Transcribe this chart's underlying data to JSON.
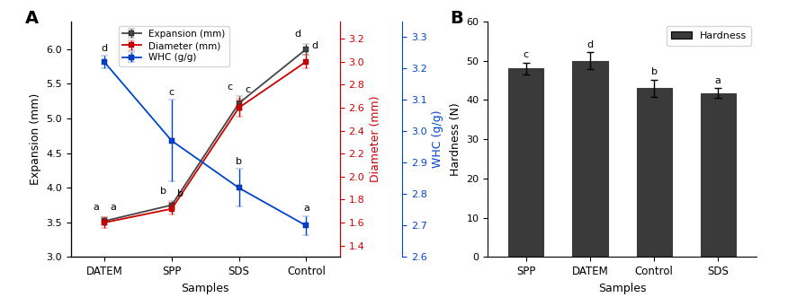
{
  "panel_A": {
    "samples": [
      "DATEM",
      "SPP",
      "SDS",
      "Control"
    ],
    "expansion_mean": [
      3.52,
      3.75,
      5.22,
      6.0
    ],
    "expansion_err": [
      0.06,
      0.06,
      0.1,
      0.08
    ],
    "expansion_labels": [
      "a",
      "b",
      "c",
      "d"
    ],
    "diameter_mean": [
      1.6,
      1.72,
      2.6,
      3.0
    ],
    "diameter_err": [
      0.05,
      0.05,
      0.08,
      0.06
    ],
    "diameter_labels": [
      "a",
      "b",
      "c",
      "d"
    ],
    "whc_mean": [
      3.22,
      2.97,
      2.82,
      2.7
    ],
    "whc_err": [
      0.02,
      0.13,
      0.06,
      0.03
    ],
    "whc_labels": [
      "d",
      "c",
      "b",
      "a"
    ],
    "expansion_ylim": [
      3.0,
      6.4
    ],
    "expansion_yticks": [
      3.0,
      3.5,
      4.0,
      4.5,
      5.0,
      5.5,
      6.0
    ],
    "diameter_ylim": [
      1.3,
      3.35
    ],
    "diameter_yticks": [
      1.4,
      1.6,
      1.8,
      2.0,
      2.2,
      2.4,
      2.6,
      2.8,
      3.0,
      3.2
    ],
    "whc_ylim": [
      2.6,
      3.35
    ],
    "whc_yticks": [
      2.6,
      2.7,
      2.8,
      2.9,
      3.0,
      3.1,
      3.2,
      3.3
    ],
    "expansion_color": "#444444",
    "diameter_color": "#cc0000",
    "whc_color": "#0044cc",
    "xlabel": "Samples",
    "ylabel_left": "Expansion (mm)",
    "ylabel_right_red": "Diameter (mm)",
    "ylabel_right_blue": "WHC (g/g)"
  },
  "panel_B": {
    "samples": [
      "SPP",
      "DATEM",
      "Control",
      "SDS"
    ],
    "hardness_mean": [
      48.0,
      50.0,
      43.0,
      41.8
    ],
    "hardness_err": [
      1.5,
      2.2,
      2.2,
      1.2
    ],
    "hardness_labels": [
      "c",
      "d",
      "b",
      "a"
    ],
    "bar_color": "#3a3a3a",
    "bar_edge_color": "#3a3a3a",
    "ylim": [
      0,
      60
    ],
    "yticks": [
      0,
      10,
      20,
      30,
      40,
      50,
      60
    ],
    "xlabel": "Samples",
    "ylabel": "Hardness (N)",
    "legend_label": "Hardness"
  },
  "figure_bg": "#ffffff",
  "label_A": "A",
  "label_B": "B"
}
